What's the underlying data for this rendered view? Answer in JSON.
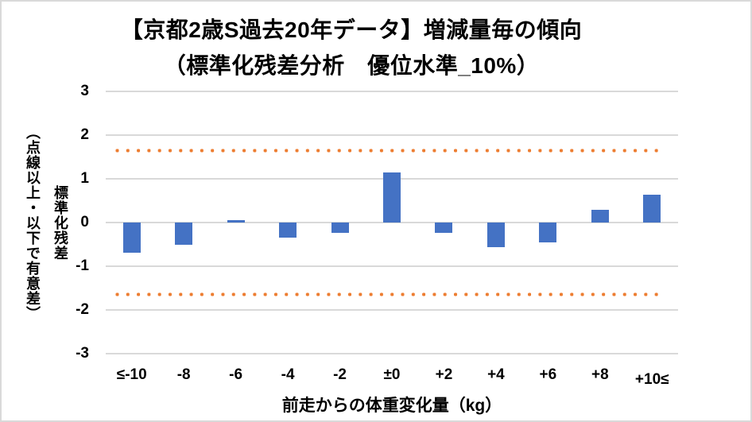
{
  "chart_data": {
    "type": "bar",
    "title_line1": "【京都2歳S過去20年データ】増減量毎の傾向",
    "title_line2": "（標準化残差分析　優位水準_10%）",
    "categories": [
      "≤-10",
      "-8",
      "-6",
      "-4",
      "-2",
      "±0",
      "+2",
      "+4",
      "+6",
      "+8",
      "+10≤"
    ],
    "values": [
      -0.69,
      -0.51,
      0.06,
      -0.35,
      -0.24,
      1.15,
      -0.24,
      -0.57,
      -0.45,
      0.29,
      0.64
    ],
    "xlabel": "前走からの体重変化量（kg）",
    "ylabel": "標準化残差",
    "ylabel_note": "（点線以上・以下で有意差）",
    "ylim": [
      -3,
      3
    ],
    "yticks": [
      3,
      2,
      1,
      0,
      -1,
      -2,
      -3
    ],
    "threshold_lines": [
      1.65,
      -1.65
    ],
    "grid": true,
    "legend": "none",
    "colors": {
      "bar": "#4472C4",
      "threshold": "#ED7D31",
      "gridline": "#D9D9D9",
      "text": "#000000",
      "frame_border": "#D9D9D9",
      "background": "#FFFFFF"
    }
  }
}
